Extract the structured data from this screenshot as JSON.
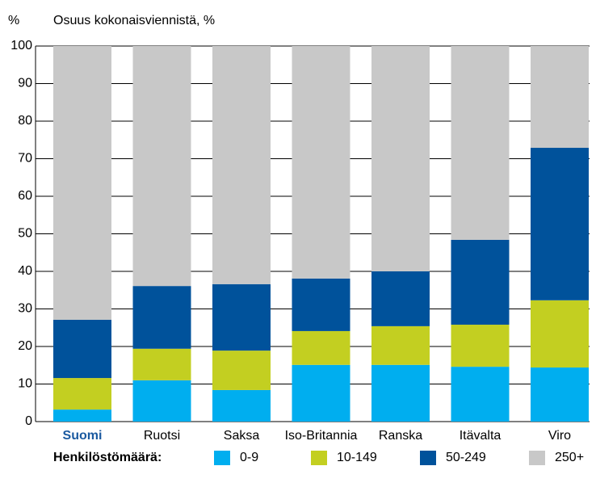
{
  "chart_data": {
    "type": "stacked_bar",
    "title": "Osuus kokonaisviennistä, %",
    "y_label": "%",
    "categories": [
      "Suomi",
      "Ruotsi",
      "Saksa",
      "Iso-Britannia",
      "Ranska",
      "Itävalta",
      "Viro"
    ],
    "highlight_index": 0,
    "highlight_color": "#1b5aa0",
    "series": [
      {
        "name": "0-9",
        "color": "#00aeef",
        "values": [
          3.2,
          11,
          8.4,
          15.1,
          15.1,
          14.6,
          14.4
        ]
      },
      {
        "name": "10-149",
        "color": "#c3cf21",
        "values": [
          8.4,
          8.4,
          10.5,
          9,
          10.3,
          11.2,
          17.9
        ]
      },
      {
        "name": "50-249",
        "color": "#00529b",
        "values": [
          15.5,
          16.7,
          17.7,
          14,
          14.6,
          22.6,
          40.6
        ]
      },
      {
        "name": "250+",
        "color": "#c8c8c8",
        "values": [
          72.9,
          63.9,
          63.4,
          61.9,
          60,
          51.6,
          27.1
        ]
      }
    ],
    "legend_title": "Henkilöstömäärä:",
    "ylim": [
      0,
      100
    ],
    "yticks": [
      0,
      10,
      20,
      30,
      40,
      50,
      60,
      70,
      80,
      90,
      100
    ],
    "grid": true
  }
}
